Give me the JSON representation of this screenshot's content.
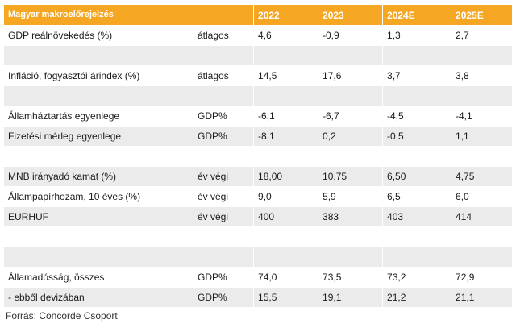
{
  "table": {
    "title": "Magyar makroelőrejelzés",
    "years": [
      "2022",
      "2023",
      "2024E",
      "2025E"
    ],
    "rows": [
      {
        "label": "GDP reálnövekedés (%)",
        "unit": "átlagos",
        "values": [
          "4,6",
          "-0,9",
          "1,3",
          "2,7"
        ]
      },
      {
        "label": "",
        "unit": "",
        "values": [
          "",
          "",
          "",
          ""
        ]
      },
      {
        "label": "Infláció, fogyasztói árindex (%)",
        "unit": "átlagos",
        "values": [
          "14,5",
          "17,6",
          "3,7",
          "3,8"
        ]
      },
      {
        "label": "",
        "unit": "",
        "values": [
          "",
          "",
          "",
          ""
        ]
      },
      {
        "label": "Államháztartás egyenlege",
        "unit": "GDP%",
        "values": [
          "-6,1",
          "-6,7",
          "-4,5",
          "-4,1"
        ]
      },
      {
        "label": "Fizetési mérleg egyenlege",
        "unit": "GDP%",
        "values": [
          "-8,1",
          "0,2",
          "-0,5",
          "1,1"
        ]
      },
      {
        "label": "",
        "unit": "",
        "values": [
          "",
          "",
          "",
          ""
        ]
      },
      {
        "label": "MNB irányadó kamat (%)",
        "unit": "év végi",
        "values": [
          "18,00",
          "10,75",
          "6,50",
          "4,75"
        ]
      },
      {
        "label": "Állampapírhozam, 10 éves (%)",
        "unit": "év végi",
        "values": [
          "9,0",
          "5,9",
          "6,5",
          "6,0"
        ]
      },
      {
        "label": "EURHUF",
        "unit": "év végi",
        "values": [
          "400",
          "383",
          "403",
          "414"
        ]
      },
      {
        "label": "",
        "unit": "",
        "values": [
          "",
          "",
          "",
          ""
        ]
      },
      {
        "label": "",
        "unit": "",
        "values": [
          "",
          "",
          "",
          ""
        ]
      },
      {
        "label": "Államadósság, összes",
        "unit": "GDP%",
        "values": [
          "74,0",
          "73,5",
          "73,2",
          "72,9"
        ]
      },
      {
        "label": "- ebből devizában",
        "unit": "GDP%",
        "values": [
          "15,5",
          "19,1",
          "21,2",
          "21,1"
        ]
      }
    ]
  },
  "source": "Forrás: Concorde Csoport",
  "colors": {
    "header": "#f5a623",
    "band": "#ebebeb"
  }
}
